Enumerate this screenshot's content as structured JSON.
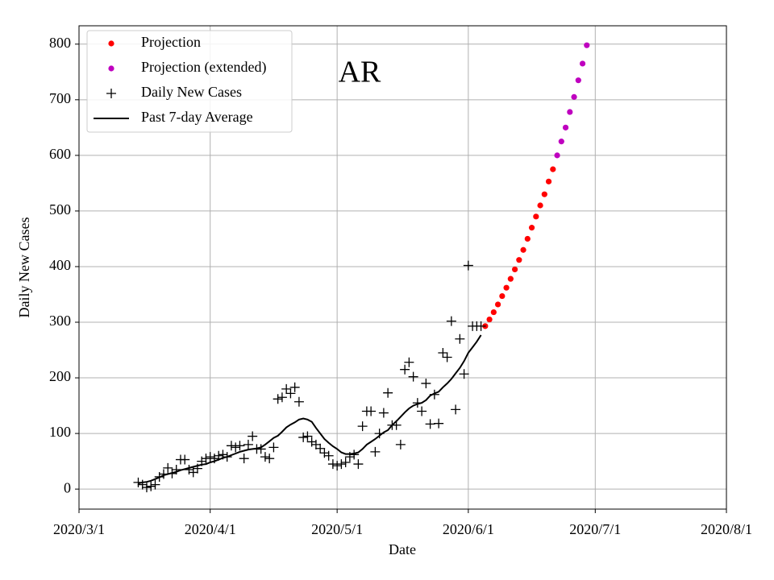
{
  "chart_data": {
    "type": "scatter",
    "annotation": "AR",
    "xlabel": "Date",
    "ylabel": "Daily New Cases",
    "xlim": [
      "2020-03-01",
      "2020-08-01"
    ],
    "xticks": [
      {
        "value": "2020-03-01",
        "label": "2020/3/1"
      },
      {
        "value": "2020-04-01",
        "label": "2020/4/1"
      },
      {
        "value": "2020-05-01",
        "label": "2020/5/1"
      },
      {
        "value": "2020-06-01",
        "label": "2020/6/1"
      },
      {
        "value": "2020-07-01",
        "label": "2020/7/1"
      },
      {
        "value": "2020-08-01",
        "label": "2020/8/1"
      }
    ],
    "ylim": [
      -36,
      833
    ],
    "yticks": [
      0,
      100,
      200,
      300,
      400,
      500,
      600,
      700,
      800
    ],
    "grid": true,
    "legend": "upper left",
    "series": [
      {
        "name": "Projection",
        "color": "#ff0000",
        "marker": "dot",
        "x": [
          "2020-06-05",
          "2020-06-06",
          "2020-06-07",
          "2020-06-08",
          "2020-06-09",
          "2020-06-10",
          "2020-06-11",
          "2020-06-12",
          "2020-06-13",
          "2020-06-14",
          "2020-06-15",
          "2020-06-16",
          "2020-06-17",
          "2020-06-18",
          "2020-06-19",
          "2020-06-20",
          "2020-06-21"
        ],
        "values": [
          293,
          305,
          318,
          332,
          347,
          362,
          378,
          395,
          412,
          430,
          450,
          470,
          490,
          510,
          530,
          553,
          575
        ]
      },
      {
        "name": "Projection (extended)",
        "color": "#bf00bf",
        "marker": "dot",
        "x": [
          "2020-06-22",
          "2020-06-23",
          "2020-06-24",
          "2020-06-25",
          "2020-06-26",
          "2020-06-27",
          "2020-06-28",
          "2020-06-29"
        ],
        "values": [
          600,
          625,
          650,
          678,
          705,
          735,
          765,
          798
        ]
      },
      {
        "name": "Daily New Cases",
        "color": "#000000",
        "marker": "plus",
        "x": [
          "2020-03-15",
          "2020-03-16",
          "2020-03-17",
          "2020-03-18",
          "2020-03-19",
          "2020-03-20",
          "2020-03-21",
          "2020-03-22",
          "2020-03-23",
          "2020-03-24",
          "2020-03-25",
          "2020-03-26",
          "2020-03-27",
          "2020-03-28",
          "2020-03-29",
          "2020-03-30",
          "2020-03-31",
          "2020-04-01",
          "2020-04-02",
          "2020-04-03",
          "2020-04-04",
          "2020-04-05",
          "2020-04-06",
          "2020-04-07",
          "2020-04-08",
          "2020-04-09",
          "2020-04-10",
          "2020-04-11",
          "2020-04-12",
          "2020-04-13",
          "2020-04-14",
          "2020-04-15",
          "2020-04-16",
          "2020-04-17",
          "2020-04-18",
          "2020-04-19",
          "2020-04-20",
          "2020-04-21",
          "2020-04-22",
          "2020-04-23",
          "2020-04-24",
          "2020-04-25",
          "2020-04-26",
          "2020-04-27",
          "2020-04-28",
          "2020-04-29",
          "2020-04-30",
          "2020-05-01",
          "2020-05-02",
          "2020-05-03",
          "2020-05-04",
          "2020-05-05",
          "2020-05-06",
          "2020-05-07",
          "2020-05-08",
          "2020-05-09",
          "2020-05-10",
          "2020-05-11",
          "2020-05-12",
          "2020-05-13",
          "2020-05-14",
          "2020-05-15",
          "2020-05-16",
          "2020-05-17",
          "2020-05-18",
          "2020-05-19",
          "2020-05-20",
          "2020-05-21",
          "2020-05-22",
          "2020-05-23",
          "2020-05-24",
          "2020-05-25",
          "2020-05-26",
          "2020-05-27",
          "2020-05-28",
          "2020-05-29",
          "2020-05-30",
          "2020-05-31",
          "2020-06-01",
          "2020-06-02",
          "2020-06-03",
          "2020-06-04"
        ],
        "values": [
          12,
          8,
          3,
          5,
          8,
          22,
          27,
          38,
          28,
          35,
          53,
          53,
          35,
          30,
          37,
          50,
          55,
          58,
          55,
          60,
          62,
          58,
          78,
          75,
          78,
          55,
          80,
          95,
          72,
          72,
          58,
          55,
          75,
          162,
          165,
          180,
          172,
          183,
          157,
          93,
          95,
          85,
          80,
          73,
          65,
          60,
          45,
          42,
          45,
          48,
          58,
          62,
          45,
          113,
          140,
          140,
          67,
          100,
          137,
          173,
          115,
          115,
          80,
          215,
          228,
          202,
          155,
          140,
          190,
          117,
          170,
          118,
          245,
          237,
          302,
          143,
          270,
          207,
          402,
          293,
          293,
          293
        ]
      },
      {
        "name": "Past 7-day Average",
        "color": "#000000",
        "marker": "line",
        "x": [
          "2020-03-15",
          "2020-03-16",
          "2020-03-17",
          "2020-03-18",
          "2020-03-19",
          "2020-03-20",
          "2020-03-21",
          "2020-03-22",
          "2020-03-23",
          "2020-03-24",
          "2020-03-25",
          "2020-03-26",
          "2020-03-27",
          "2020-03-28",
          "2020-03-29",
          "2020-03-30",
          "2020-03-31",
          "2020-04-01",
          "2020-04-02",
          "2020-04-03",
          "2020-04-04",
          "2020-04-05",
          "2020-04-06",
          "2020-04-07",
          "2020-04-08",
          "2020-04-09",
          "2020-04-10",
          "2020-04-11",
          "2020-04-12",
          "2020-04-13",
          "2020-04-14",
          "2020-04-15",
          "2020-04-16",
          "2020-04-17",
          "2020-04-18",
          "2020-04-19",
          "2020-04-20",
          "2020-04-21",
          "2020-04-22",
          "2020-04-23",
          "2020-04-24",
          "2020-04-25",
          "2020-04-26",
          "2020-04-27",
          "2020-04-28",
          "2020-04-29",
          "2020-04-30",
          "2020-05-01",
          "2020-05-02",
          "2020-05-03",
          "2020-05-04",
          "2020-05-05",
          "2020-05-06",
          "2020-05-07",
          "2020-05-08",
          "2020-05-09",
          "2020-05-10",
          "2020-05-11",
          "2020-05-12",
          "2020-05-13",
          "2020-05-14",
          "2020-05-15",
          "2020-05-16",
          "2020-05-17",
          "2020-05-18",
          "2020-05-19",
          "2020-05-20",
          "2020-05-21",
          "2020-05-22",
          "2020-05-23",
          "2020-05-24",
          "2020-05-25",
          "2020-05-26",
          "2020-05-27",
          "2020-05-28",
          "2020-05-29",
          "2020-05-30",
          "2020-05-31",
          "2020-06-01",
          "2020-06-02",
          "2020-06-03",
          "2020-06-04"
        ],
        "values": [
          10,
          12,
          13,
          15,
          18,
          21,
          25,
          27,
          29,
          31,
          34,
          36,
          38,
          40,
          42,
          44,
          45,
          48,
          50,
          53,
          56,
          58,
          61,
          64,
          67,
          69,
          71,
          72,
          73,
          75,
          80,
          86,
          92,
          96,
          103,
          111,
          116,
          120,
          125,
          127,
          125,
          121,
          110,
          100,
          90,
          83,
          77,
          72,
          66,
          63,
          63,
          64,
          66,
          72,
          80,
          85,
          90,
          96,
          102,
          106,
          115,
          122,
          130,
          138,
          145,
          150,
          153,
          155,
          160,
          168,
          172,
          175,
          183,
          190,
          198,
          208,
          218,
          230,
          245,
          255,
          265,
          277
        ]
      }
    ]
  }
}
